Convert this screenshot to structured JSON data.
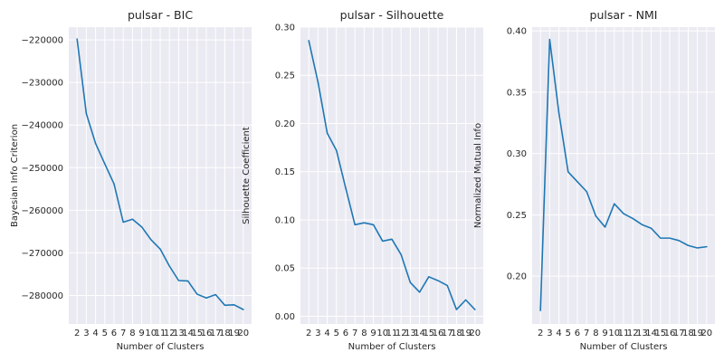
{
  "chart_data": [
    {
      "type": "line",
      "title": "pulsar - BIC",
      "xlabel": "Number of Clusters",
      "ylabel": "Bayesian Info Criterion",
      "x": [
        2,
        3,
        4,
        5,
        6,
        7,
        8,
        9,
        10,
        11,
        12,
        13,
        14,
        15,
        16,
        17,
        18,
        19,
        20
      ],
      "xlim": [
        1.1,
        20.9
      ],
      "yticks": [
        -280000,
        -270000,
        -260000,
        -250000,
        -240000,
        -230000,
        -220000
      ],
      "ylim": [
        -286700,
        -217000
      ],
      "grid": true,
      "series": [
        {
          "values": [
            -219800,
            -237300,
            -244300,
            -249100,
            -253800,
            -262800,
            -262100,
            -263900,
            -266900,
            -269100,
            -273100,
            -276500,
            -276600,
            -279700,
            -280600,
            -279800,
            -282300,
            -282200,
            -283300
          ]
        }
      ]
    },
    {
      "type": "line",
      "title": "pulsar - Silhouette",
      "xlabel": "Number of Clusters",
      "ylabel": "Silhouette Coefficient",
      "x": [
        2,
        3,
        4,
        5,
        6,
        7,
        8,
        9,
        10,
        11,
        12,
        13,
        14,
        15,
        16,
        17,
        18,
        19,
        20
      ],
      "xlim": [
        1.1,
        20.9
      ],
      "yticks": [
        0.0,
        0.05,
        0.1,
        0.15,
        0.2,
        0.25,
        0.3
      ],
      "ylim": [
        -0.008,
        0.3
      ],
      "grid": true,
      "series": [
        {
          "values": [
            0.286,
            0.243,
            0.19,
            0.172,
            0.133,
            0.095,
            0.097,
            0.095,
            0.078,
            0.08,
            0.064,
            0.035,
            0.025,
            0.041,
            0.037,
            0.032,
            0.007,
            0.017,
            0.007
          ]
        }
      ]
    },
    {
      "type": "line",
      "title": "pulsar - NMI",
      "xlabel": "Number of Clusters",
      "ylabel": "Normalized Mutual Info",
      "x": [
        2,
        3,
        4,
        5,
        6,
        7,
        8,
        9,
        10,
        11,
        12,
        13,
        14,
        15,
        16,
        17,
        18,
        19,
        20
      ],
      "xlim": [
        1.1,
        20.9
      ],
      "yticks": [
        0.2,
        0.25,
        0.3,
        0.35,
        0.4
      ],
      "ylim": [
        0.161,
        0.403
      ],
      "grid": true,
      "series": [
        {
          "values": [
            0.172,
            0.393,
            0.333,
            0.285,
            0.277,
            0.269,
            0.249,
            0.24,
            0.259,
            0.251,
            0.247,
            0.242,
            0.239,
            0.231,
            0.231,
            0.229,
            0.225,
            0.223,
            0.224
          ]
        }
      ]
    }
  ],
  "colors": {
    "line": "#1f77b4",
    "plot_bg": "#eaeaf2",
    "grid": "#ffffff",
    "text": "#262626"
  }
}
